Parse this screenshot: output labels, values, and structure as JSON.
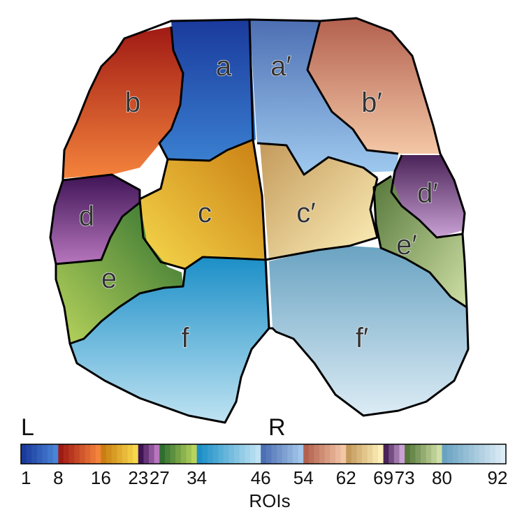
{
  "regions": [
    {
      "id": "a",
      "label": "a",
      "colors": [
        "#1a3a9c",
        "#2b62c4"
      ]
    },
    {
      "id": "a2",
      "label": "a′",
      "colors": [
        "#4d6fb3",
        "#8ab3de"
      ]
    },
    {
      "id": "b",
      "label": "b",
      "colors": [
        "#a01a14",
        "#f4833c"
      ]
    },
    {
      "id": "b2",
      "label": "b′",
      "colors": [
        "#b3614f",
        "#f3c7a6"
      ]
    },
    {
      "id": "c",
      "label": "c",
      "colors": [
        "#c97e12",
        "#f6d84c"
      ]
    },
    {
      "id": "c2",
      "label": "c′",
      "colors": [
        "#c49a5c",
        "#fdf0b9"
      ]
    },
    {
      "id": "d",
      "label": "d",
      "colors": [
        "#3f1456",
        "#b776bd"
      ]
    },
    {
      "id": "d2",
      "label": "d′",
      "colors": [
        "#4a2358",
        "#c9a1d4"
      ]
    },
    {
      "id": "e",
      "label": "e",
      "colors": [
        "#2f6e2f",
        "#b8d45c"
      ]
    },
    {
      "id": "e2",
      "label": "e′",
      "colors": [
        "#56773a",
        "#cfe0a6"
      ]
    },
    {
      "id": "f",
      "label": "f",
      "colors": [
        "#1c8fc7",
        "#bfe3f2"
      ]
    },
    {
      "id": "f2",
      "label": "f′",
      "colors": [
        "#6aa3c2",
        "#dcecf5"
      ]
    }
  ],
  "side_labels": {
    "left": "L",
    "right": "R"
  },
  "colorbar": {
    "axis_title": "ROIs",
    "ticks": [
      1,
      8,
      16,
      23,
      27,
      34,
      46,
      54,
      62,
      69,
      73,
      80,
      92
    ],
    "segments": [
      {
        "from": 1,
        "to": 8,
        "colors": [
          "#1a3a9c",
          "#4a84d6"
        ]
      },
      {
        "from": 8,
        "to": 16,
        "colors": [
          "#a01a14",
          "#f4833c"
        ]
      },
      {
        "from": 16,
        "to": 23,
        "colors": [
          "#c97e12",
          "#f6d84c"
        ]
      },
      {
        "from": 23,
        "to": 27,
        "colors": [
          "#3f1456",
          "#b776bd"
        ]
      },
      {
        "from": 27,
        "to": 34,
        "colors": [
          "#2f6e2f",
          "#b8d45c"
        ]
      },
      {
        "from": 34,
        "to": 46,
        "colors": [
          "#1c8fc7",
          "#bfe3f2"
        ]
      },
      {
        "from": 46,
        "to": 54,
        "colors": [
          "#4d6fb3",
          "#a3c6ea"
        ]
      },
      {
        "from": 54,
        "to": 62,
        "colors": [
          "#b3614f",
          "#f3c7a6"
        ]
      },
      {
        "from": 62,
        "to": 69,
        "colors": [
          "#c49a5c",
          "#fdf0b9"
        ]
      },
      {
        "from": 69,
        "to": 73,
        "colors": [
          "#4a2358",
          "#c9a1d4"
        ]
      },
      {
        "from": 73,
        "to": 80,
        "colors": [
          "#56773a",
          "#cfe0a6"
        ]
      },
      {
        "from": 80,
        "to": 92,
        "colors": [
          "#6aa3c2",
          "#dcecf5"
        ]
      }
    ]
  }
}
